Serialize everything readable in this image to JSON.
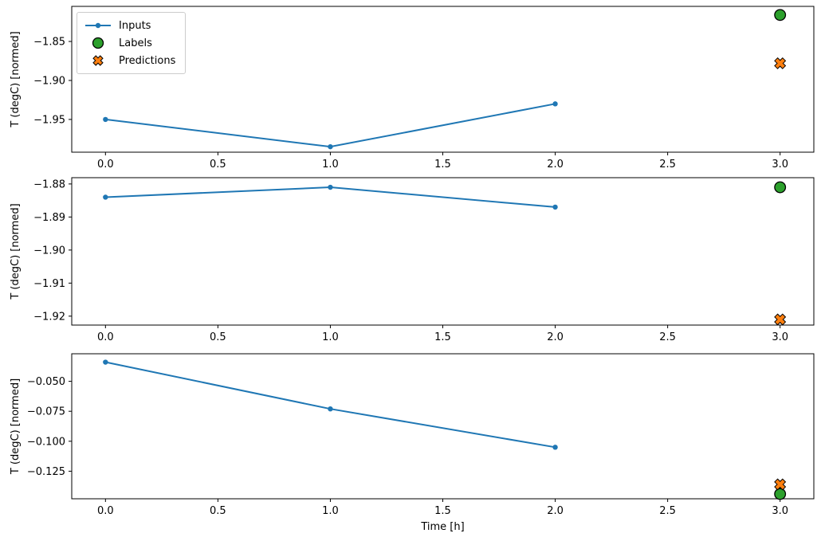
{
  "figure": {
    "background": "#ffffff",
    "xlabel": "Time [h]",
    "ylabel": "T (degC) [normed]",
    "x_ticks": [
      {
        "v": 0.0,
        "label": "0.0"
      },
      {
        "v": 0.5,
        "label": "0.5"
      },
      {
        "v": 1.0,
        "label": "1.0"
      },
      {
        "v": 1.5,
        "label": "1.5"
      },
      {
        "v": 2.0,
        "label": "2.0"
      },
      {
        "v": 2.5,
        "label": "2.5"
      },
      {
        "v": 3.0,
        "label": "3.0"
      }
    ]
  },
  "colors": {
    "inputs": "#1f77b4",
    "labels": "#2ca02c",
    "predictions": "#ff7f0e",
    "marker_edge": "#000000",
    "spine": "#000000"
  },
  "legend": {
    "items": [
      {
        "label": "Inputs",
        "marker": "line-dot-icon",
        "color_key": "inputs"
      },
      {
        "label": "Labels",
        "marker": "circle-icon",
        "color_key": "labels"
      },
      {
        "label": "Predictions",
        "marker": "x-icon",
        "color_key": "predictions"
      }
    ]
  },
  "chart_data": [
    {
      "type": "line",
      "title": "",
      "xlabel": "",
      "ylabel": "T (degC) [normed]",
      "xlim": [
        -0.15,
        3.15
      ],
      "ylim": [
        -1.992,
        -1.805
      ],
      "grid": false,
      "y_ticks": [
        {
          "v": -1.85,
          "label": "−1.85"
        },
        {
          "v": -1.9,
          "label": "−1.90"
        },
        {
          "v": -1.95,
          "label": "−1.95"
        }
      ],
      "series": [
        {
          "name": "Inputs",
          "kind": "line",
          "x": [
            0,
            1,
            2
          ],
          "y": [
            -1.95,
            -1.985,
            -1.93
          ]
        },
        {
          "name": "Labels",
          "kind": "scatter-circle",
          "x": [
            3
          ],
          "y": [
            -1.816
          ]
        },
        {
          "name": "Predictions",
          "kind": "scatter-x",
          "x": [
            3
          ],
          "y": [
            -1.878
          ]
        }
      ]
    },
    {
      "type": "line",
      "title": "",
      "xlabel": "",
      "ylabel": "T (degC) [normed]",
      "xlim": [
        -0.15,
        3.15
      ],
      "ylim": [
        -1.9227,
        -1.8781
      ],
      "grid": false,
      "y_ticks": [
        {
          "v": -1.88,
          "label": "−1.88"
        },
        {
          "v": -1.89,
          "label": "−1.89"
        },
        {
          "v": -1.9,
          "label": "−1.90"
        },
        {
          "v": -1.91,
          "label": "−1.91"
        },
        {
          "v": -1.92,
          "label": "−1.92"
        }
      ],
      "series": [
        {
          "name": "Inputs",
          "kind": "line",
          "x": [
            0,
            1,
            2
          ],
          "y": [
            -1.884,
            -1.881,
            -1.887
          ]
        },
        {
          "name": "Labels",
          "kind": "scatter-circle",
          "x": [
            3
          ],
          "y": [
            -1.881
          ]
        },
        {
          "name": "Predictions",
          "kind": "scatter-x",
          "x": [
            3
          ],
          "y": [
            -1.921
          ]
        }
      ]
    },
    {
      "type": "line",
      "title": "",
      "xlabel": "Time [h]",
      "ylabel": "T (degC) [normed]",
      "xlim": [
        -0.15,
        3.15
      ],
      "ylim": [
        -0.148,
        -0.027
      ],
      "grid": false,
      "y_ticks": [
        {
          "v": -0.05,
          "label": "−0.050"
        },
        {
          "v": -0.075,
          "label": "−0.075"
        },
        {
          "v": -0.1,
          "label": "−0.100"
        },
        {
          "v": -0.125,
          "label": "−0.125"
        }
      ],
      "series": [
        {
          "name": "Inputs",
          "kind": "line",
          "x": [
            0,
            1,
            2
          ],
          "y": [
            -0.034,
            -0.073,
            -0.105
          ]
        },
        {
          "name": "Labels",
          "kind": "scatter-circle",
          "x": [
            3
          ],
          "y": [
            -0.144
          ]
        },
        {
          "name": "Predictions",
          "kind": "scatter-x",
          "x": [
            3
          ],
          "y": [
            -0.136
          ]
        }
      ]
    }
  ]
}
